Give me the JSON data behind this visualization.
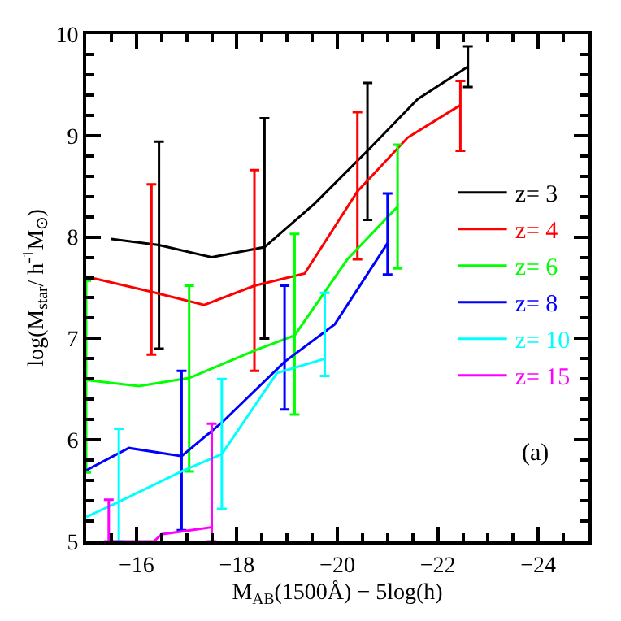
{
  "chart_data": {
    "type": "line",
    "xlabel": "M$_{AB}$(1500Å) − 5log(h)",
    "ylabel": "log(M$_{star}$/ h$^{-1}$M$_{⊙}$)",
    "annotations": [
      "(a)"
    ],
    "xlim": [
      -15,
      -25
    ],
    "ylim": [
      5,
      10
    ],
    "xticks": [
      -16,
      -18,
      -20,
      -22,
      -24
    ],
    "yticks": [
      5,
      6,
      7,
      8,
      9,
      10
    ],
    "marker": "none",
    "line_style": "solid",
    "legend": "top right",
    "series": [
      {
        "name": "z= 3",
        "color": "#000000",
        "x": [
          -15.5,
          -16.45,
          -17.5,
          -18.55,
          -19.55,
          -20.6,
          -21.6,
          -22.6
        ],
        "values": [
          7.98,
          7.92,
          7.8,
          7.9,
          8.33,
          8.85,
          9.36,
          9.68
        ],
        "errors": [
          null,
          [
            6.9,
            8.94
          ],
          null,
          [
            7.0,
            9.17
          ],
          null,
          [
            8.17,
            9.52
          ],
          null,
          [
            9.48,
            9.88
          ]
        ]
      },
      {
        "name": "z= 4",
        "color": "#ff0000",
        "x": [
          -15.0,
          -16.3,
          -17.35,
          -18.35,
          -19.35,
          -20.4,
          -21.4,
          -22.45
        ],
        "values": [
          7.61,
          7.46,
          7.33,
          7.52,
          7.64,
          8.45,
          8.98,
          9.3
        ],
        "errors": [
          null,
          [
            6.84,
            8.52
          ],
          null,
          [
            6.68,
            8.66
          ],
          null,
          [
            7.78,
            9.23
          ],
          null,
          [
            8.85,
            9.54
          ]
        ]
      },
      {
        "name": "z= 6",
        "color": "#00ff00",
        "x": [
          -15.0,
          -16.05,
          -17.05,
          -18.4,
          -19.15,
          -20.2,
          -21.2
        ],
        "values": [
          6.59,
          6.53,
          6.61,
          6.89,
          7.03,
          7.78,
          8.3
        ],
        "errors": [
          [
            5.68,
            7.57
          ],
          null,
          [
            5.69,
            7.52
          ],
          null,
          [
            6.25,
            8.03
          ],
          null,
          [
            7.69,
            8.91
          ]
        ]
      },
      {
        "name": "z= 8",
        "color": "#0000ff",
        "x": [
          -15.0,
          -15.85,
          -16.9,
          -17.7,
          -18.95,
          -19.95,
          -21.0
        ],
        "values": [
          5.7,
          5.92,
          5.84,
          6.17,
          6.77,
          7.14,
          7.94
        ],
        "errors": [
          null,
          null,
          [
            5.11,
            6.68
          ],
          null,
          [
            6.3,
            7.52
          ],
          null,
          [
            7.63,
            8.43
          ]
        ]
      },
      {
        "name": "z= 10",
        "color": "#00ffff",
        "x": [
          -15.0,
          -15.65,
          -16.9,
          -17.7,
          -18.8,
          -19.75
        ],
        "values": [
          5.24,
          5.39,
          5.69,
          5.86,
          6.66,
          6.8
        ],
        "errors": [
          null,
          [
            5.0,
            6.11
          ],
          null,
          [
            5.32,
            6.6
          ],
          null,
          [
            6.63,
            7.45
          ]
        ]
      },
      {
        "name": "z= 15",
        "color": "#ff00ff",
        "x": [
          -15.45,
          -16.35,
          -16.5,
          -17.5
        ],
        "values": [
          5.0,
          5.0,
          5.07,
          5.14
        ],
        "errors": [
          [
            5.0,
            5.41
          ],
          null,
          null,
          [
            5.0,
            6.16
          ]
        ]
      }
    ]
  }
}
